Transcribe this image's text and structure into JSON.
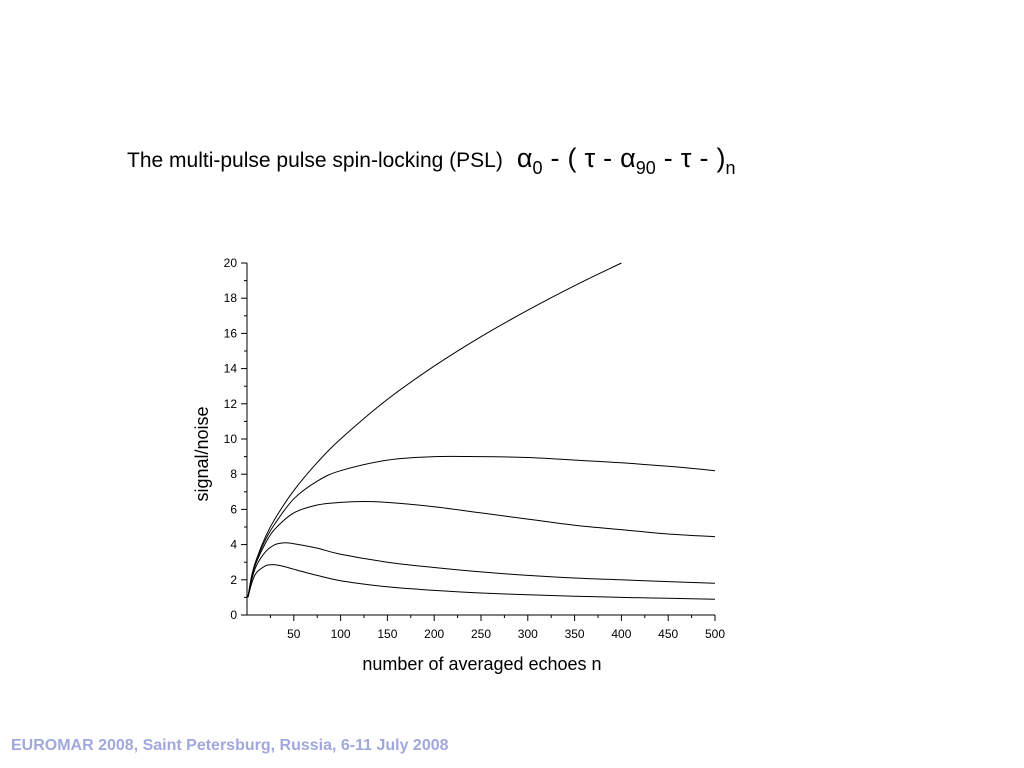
{
  "title": {
    "text": "The multi-pulse pulse spin-locking (PSL)",
    "sequence": {
      "alpha": "α",
      "alpha0_sub": "0",
      "dash": "-",
      "open_paren": "(",
      "tau": "τ",
      "alpha90_sub": "90",
      "close_paren": ")",
      "n_sub": "n"
    }
  },
  "footer": {
    "text": "EUROMAR 2008, Saint Petersburg, Russia, 6-11 July 2008"
  },
  "colors": {
    "footer": "#a0a8dc",
    "curve": "#000000"
  },
  "chart_data": {
    "type": "line",
    "xlabel": "number of averaged  echoes n",
    "ylabel": "signal/noise",
    "xlim": [
      0,
      500
    ],
    "ylim": [
      0,
      20
    ],
    "xticks": [
      50,
      100,
      150,
      200,
      250,
      300,
      350,
      400,
      450,
      500
    ],
    "yticks": [
      0,
      2,
      4,
      6,
      8,
      10,
      12,
      14,
      16,
      18,
      20
    ],
    "grid": false,
    "series": [
      {
        "x": [
          1,
          5,
          10,
          20,
          30,
          50,
          75,
          100,
          150,
          200,
          250,
          300,
          350,
          400
        ],
        "values": [
          1.0,
          2.24,
          3.16,
          4.47,
          5.48,
          7.07,
          8.66,
          10.0,
          12.25,
          14.14,
          15.81,
          17.32,
          18.71,
          20.0
        ]
      },
      {
        "x": [
          1,
          5,
          10,
          20,
          30,
          50,
          75,
          100,
          150,
          200,
          250,
          300,
          350,
          400,
          450,
          500
        ],
        "values": [
          1.0,
          2.2,
          3.1,
          4.3,
          5.2,
          6.6,
          7.6,
          8.2,
          8.8,
          9.0,
          9.0,
          8.95,
          8.8,
          8.65,
          8.45,
          8.2
        ]
      },
      {
        "x": [
          1,
          5,
          10,
          20,
          30,
          50,
          75,
          100,
          125,
          150,
          200,
          250,
          300,
          350,
          400,
          450,
          500
        ],
        "values": [
          1.0,
          2.15,
          3.0,
          4.1,
          4.9,
          5.8,
          6.25,
          6.4,
          6.45,
          6.4,
          6.15,
          5.8,
          5.45,
          5.1,
          4.85,
          4.6,
          4.45
        ]
      },
      {
        "x": [
          1,
          5,
          10,
          20,
          30,
          40,
          50,
          75,
          100,
          150,
          200,
          250,
          300,
          350,
          400,
          450,
          500
        ],
        "values": [
          1.0,
          2.0,
          2.8,
          3.6,
          4.0,
          4.1,
          4.05,
          3.8,
          3.45,
          3.0,
          2.7,
          2.45,
          2.25,
          2.1,
          2.0,
          1.9,
          1.8
        ]
      },
      {
        "x": [
          1,
          5,
          10,
          20,
          25,
          30,
          40,
          50,
          75,
          100,
          150,
          200,
          250,
          300,
          350,
          400,
          450,
          500
        ],
        "values": [
          1.0,
          1.8,
          2.4,
          2.8,
          2.85,
          2.85,
          2.75,
          2.6,
          2.25,
          1.95,
          1.6,
          1.4,
          1.25,
          1.15,
          1.07,
          1.0,
          0.95,
          0.9
        ]
      }
    ]
  }
}
